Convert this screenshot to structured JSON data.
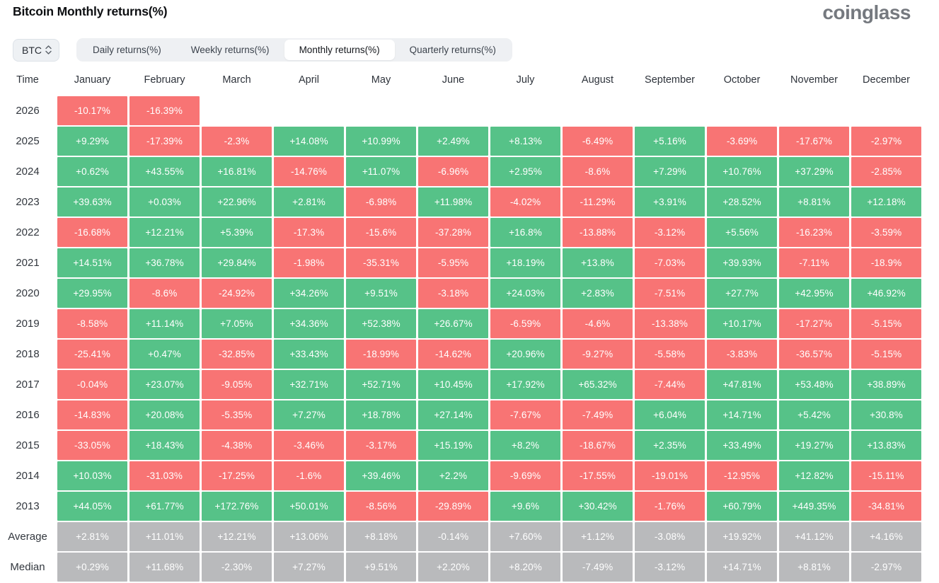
{
  "header": {
    "title": "Bitcoin Monthly returns(%)",
    "logo_text": "coinglass"
  },
  "controls": {
    "coin_selector": {
      "value": "BTC",
      "icon": "sort-updown-icon"
    },
    "tabs": [
      {
        "label": "Daily returns(%)",
        "active": false
      },
      {
        "label": "Weekly returns(%)",
        "active": false
      },
      {
        "label": "Monthly returns(%)",
        "active": true
      },
      {
        "label": "Quarterly returns(%)",
        "active": false
      }
    ]
  },
  "chart_data": {
    "type": "heatmap",
    "title": "Bitcoin Monthly returns(%)",
    "unit": "%",
    "columns": [
      "Time",
      "January",
      "February",
      "March",
      "April",
      "May",
      "June",
      "July",
      "August",
      "September",
      "October",
      "November",
      "December"
    ],
    "rows": [
      {
        "label": "2026",
        "summary": false,
        "values": [
          "-10.17%",
          "-16.39%",
          "",
          "",
          "",
          "",
          "",
          "",
          "",
          "",
          "",
          ""
        ]
      },
      {
        "label": "2025",
        "summary": false,
        "values": [
          "+9.29%",
          "-17.39%",
          "-2.3%",
          "+14.08%",
          "+10.99%",
          "+2.49%",
          "+8.13%",
          "-6.49%",
          "+5.16%",
          "-3.69%",
          "-17.67%",
          "-2.97%"
        ]
      },
      {
        "label": "2024",
        "summary": false,
        "values": [
          "+0.62%",
          "+43.55%",
          "+16.81%",
          "-14.76%",
          "+11.07%",
          "-6.96%",
          "+2.95%",
          "-8.6%",
          "+7.29%",
          "+10.76%",
          "+37.29%",
          "-2.85%"
        ]
      },
      {
        "label": "2023",
        "summary": false,
        "values": [
          "+39.63%",
          "+0.03%",
          "+22.96%",
          "+2.81%",
          "-6.98%",
          "+11.98%",
          "-4.02%",
          "-11.29%",
          "+3.91%",
          "+28.52%",
          "+8.81%",
          "+12.18%"
        ]
      },
      {
        "label": "2022",
        "summary": false,
        "values": [
          "-16.68%",
          "+12.21%",
          "+5.39%",
          "-17.3%",
          "-15.6%",
          "-37.28%",
          "+16.8%",
          "-13.88%",
          "-3.12%",
          "+5.56%",
          "-16.23%",
          "-3.59%"
        ]
      },
      {
        "label": "2021",
        "summary": false,
        "values": [
          "+14.51%",
          "+36.78%",
          "+29.84%",
          "-1.98%",
          "-35.31%",
          "-5.95%",
          "+18.19%",
          "+13.8%",
          "-7.03%",
          "+39.93%",
          "-7.11%",
          "-18.9%"
        ]
      },
      {
        "label": "2020",
        "summary": false,
        "values": [
          "+29.95%",
          "-8.6%",
          "-24.92%",
          "+34.26%",
          "+9.51%",
          "-3.18%",
          "+24.03%",
          "+2.83%",
          "-7.51%",
          "+27.7%",
          "+42.95%",
          "+46.92%"
        ]
      },
      {
        "label": "2019",
        "summary": false,
        "values": [
          "-8.58%",
          "+11.14%",
          "+7.05%",
          "+34.36%",
          "+52.38%",
          "+26.67%",
          "-6.59%",
          "-4.6%",
          "-13.38%",
          "+10.17%",
          "-17.27%",
          "-5.15%"
        ]
      },
      {
        "label": "2018",
        "summary": false,
        "values": [
          "-25.41%",
          "+0.47%",
          "-32.85%",
          "+33.43%",
          "-18.99%",
          "-14.62%",
          "+20.96%",
          "-9.27%",
          "-5.58%",
          "-3.83%",
          "-36.57%",
          "-5.15%"
        ]
      },
      {
        "label": "2017",
        "summary": false,
        "values": [
          "-0.04%",
          "+23.07%",
          "-9.05%",
          "+32.71%",
          "+52.71%",
          "+10.45%",
          "+17.92%",
          "+65.32%",
          "-7.44%",
          "+47.81%",
          "+53.48%",
          "+38.89%"
        ]
      },
      {
        "label": "2016",
        "summary": false,
        "values": [
          "-14.83%",
          "+20.08%",
          "-5.35%",
          "+7.27%",
          "+18.78%",
          "+27.14%",
          "-7.67%",
          "-7.49%",
          "+6.04%",
          "+14.71%",
          "+5.42%",
          "+30.8%"
        ]
      },
      {
        "label": "2015",
        "summary": false,
        "values": [
          "-33.05%",
          "+18.43%",
          "-4.38%",
          "-3.46%",
          "-3.17%",
          "+15.19%",
          "+8.2%",
          "-18.67%",
          "+2.35%",
          "+33.49%",
          "+19.27%",
          "+13.83%"
        ]
      },
      {
        "label": "2014",
        "summary": false,
        "values": [
          "+10.03%",
          "-31.03%",
          "-17.25%",
          "-1.6%",
          "+39.46%",
          "+2.2%",
          "-9.69%",
          "-17.55%",
          "-19.01%",
          "-12.95%",
          "+12.82%",
          "-15.11%"
        ]
      },
      {
        "label": "2013",
        "summary": false,
        "values": [
          "+44.05%",
          "+61.77%",
          "+172.76%",
          "+50.01%",
          "-8.56%",
          "-29.89%",
          "+9.6%",
          "+30.42%",
          "-1.76%",
          "+60.79%",
          "+449.35%",
          "-34.81%"
        ]
      },
      {
        "label": "Average",
        "summary": true,
        "values": [
          "+2.81%",
          "+11.01%",
          "+12.21%",
          "+13.06%",
          "+8.18%",
          "-0.14%",
          "+7.60%",
          "+1.12%",
          "-3.08%",
          "+19.92%",
          "+41.12%",
          "+4.16%"
        ]
      },
      {
        "label": "Median",
        "summary": true,
        "values": [
          "+0.29%",
          "+11.68%",
          "-2.30%",
          "+7.27%",
          "+9.51%",
          "+2.20%",
          "+8.20%",
          "-7.49%",
          "-3.12%",
          "+14.71%",
          "+8.81%",
          "-2.97%"
        ]
      }
    ],
    "colors": {
      "positive": "#56c288",
      "negative": "#f87474",
      "summary_bg": "#b9babc",
      "cell_text": "#ffffff"
    },
    "legend": "green = positive monthly return, red = negative monthly return, gray = summary rows"
  }
}
